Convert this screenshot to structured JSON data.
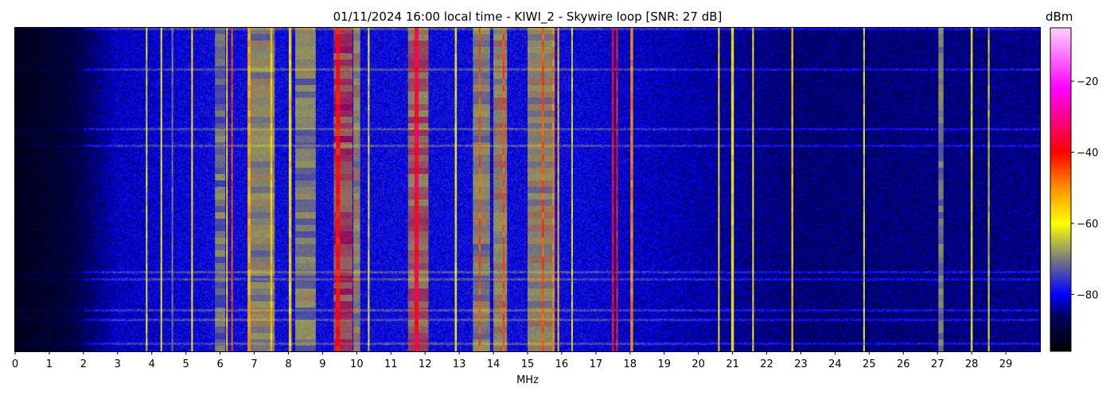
{
  "chart_data": {
    "type": "heatmap",
    "title": "01/11/2024 16:00 local time - KIWI_2 - Skywire loop [SNR: 27 dB]",
    "xlabel": "MHz",
    "ylabel": "",
    "xlim": [
      0,
      30
    ],
    "x_ticks": [
      "0",
      "1",
      "2",
      "3",
      "4",
      "5",
      "6",
      "7",
      "8",
      "9",
      "10",
      "11",
      "12",
      "13",
      "14",
      "15",
      "16",
      "17",
      "18",
      "19",
      "20",
      "21",
      "22",
      "23",
      "24",
      "25",
      "26",
      "27",
      "28",
      "29"
    ],
    "colorbar": {
      "label": "dBm",
      "range": [
        -96,
        -5
      ],
      "ticks": [
        "-20",
        "-40",
        "-60",
        "-80"
      ],
      "tick_values": [
        -20,
        -40,
        -60,
        -80
      ],
      "colormap": [
        {
          "dbm": -96,
          "color": "#000000"
        },
        {
          "dbm": -86,
          "color": "#000060"
        },
        {
          "dbm": -80,
          "color": "#0000ff"
        },
        {
          "dbm": -70,
          "color": "#7a7a80"
        },
        {
          "dbm": -60,
          "color": "#ffff00"
        },
        {
          "dbm": -50,
          "color": "#ff9000"
        },
        {
          "dbm": -40,
          "color": "#ff0000"
        },
        {
          "dbm": -22,
          "color": "#ff00ff"
        },
        {
          "dbm": -5,
          "color": "#ffd0ff"
        }
      ]
    },
    "noise_floor": [
      {
        "mhz": 0,
        "dbm": -93
      },
      {
        "mhz": 1.5,
        "dbm": -90
      },
      {
        "mhz": 3,
        "dbm": -82
      },
      {
        "mhz": 6,
        "dbm": -80
      },
      {
        "mhz": 16,
        "dbm": -80
      },
      {
        "mhz": 18.5,
        "dbm": -82
      },
      {
        "mhz": 23,
        "dbm": -86
      },
      {
        "mhz": 30,
        "dbm": -85
      }
    ],
    "signals": [
      {
        "mhz": 3.85,
        "width": 0.05,
        "dbm": -62
      },
      {
        "mhz": 4.28,
        "width": 0.05,
        "dbm": -60
      },
      {
        "mhz": 4.6,
        "width": 0.04,
        "dbm": -70
      },
      {
        "mhz": 5.18,
        "width": 0.05,
        "dbm": -58
      },
      {
        "mhz": 6.0,
        "width": 0.3,
        "dbm": -66
      },
      {
        "mhz": 6.2,
        "width": 0.05,
        "dbm": -55
      },
      {
        "mhz": 6.35,
        "width": 0.05,
        "dbm": -45
      },
      {
        "mhz": 7.2,
        "width": 0.8,
        "dbm": -62
      },
      {
        "mhz": 6.85,
        "width": 0.08,
        "dbm": -52
      },
      {
        "mhz": 7.5,
        "width": 0.06,
        "dbm": -55
      },
      {
        "mhz": 8.05,
        "width": 0.08,
        "dbm": -58
      },
      {
        "mhz": 8.5,
        "width": 0.6,
        "dbm": -63
      },
      {
        "mhz": 9.6,
        "width": 0.55,
        "dbm": -47
      },
      {
        "mhz": 9.45,
        "width": 0.12,
        "dbm": -40
      },
      {
        "mhz": 10.0,
        "width": 0.2,
        "dbm": -60
      },
      {
        "mhz": 10.35,
        "width": 0.05,
        "dbm": -62
      },
      {
        "mhz": 11.8,
        "width": 0.6,
        "dbm": -52
      },
      {
        "mhz": 11.75,
        "width": 0.12,
        "dbm": -36
      },
      {
        "mhz": 12.9,
        "width": 0.06,
        "dbm": -60
      },
      {
        "mhz": 13.65,
        "width": 0.5,
        "dbm": -62
      },
      {
        "mhz": 13.6,
        "width": 0.05,
        "dbm": -45
      },
      {
        "mhz": 14.2,
        "width": 0.4,
        "dbm": -58
      },
      {
        "mhz": 14.3,
        "width": 0.05,
        "dbm": -45
      },
      {
        "mhz": 15.4,
        "width": 0.8,
        "dbm": -60
      },
      {
        "mhz": 15.45,
        "width": 0.06,
        "dbm": -45
      },
      {
        "mhz": 15.75,
        "width": 0.05,
        "dbm": -48
      },
      {
        "mhz": 15.9,
        "width": 0.05,
        "dbm": -55
      },
      {
        "mhz": 16.3,
        "width": 0.04,
        "dbm": -62
      },
      {
        "mhz": 17.5,
        "width": 0.06,
        "dbm": -40
      },
      {
        "mhz": 17.62,
        "width": 0.05,
        "dbm": -42
      },
      {
        "mhz": 18.05,
        "width": 0.08,
        "dbm": -50
      },
      {
        "mhz": 20.6,
        "width": 0.05,
        "dbm": -58
      },
      {
        "mhz": 21.0,
        "width": 0.08,
        "dbm": -60
      },
      {
        "mhz": 21.6,
        "width": 0.05,
        "dbm": -58
      },
      {
        "mhz": 22.75,
        "width": 0.06,
        "dbm": -55
      },
      {
        "mhz": 24.85,
        "width": 0.05,
        "dbm": -62
      },
      {
        "mhz": 27.1,
        "width": 0.15,
        "dbm": -70
      },
      {
        "mhz": 28.0,
        "width": 0.06,
        "dbm": -60
      },
      {
        "mhz": 28.5,
        "width": 0.05,
        "dbm": -63
      }
    ]
  }
}
